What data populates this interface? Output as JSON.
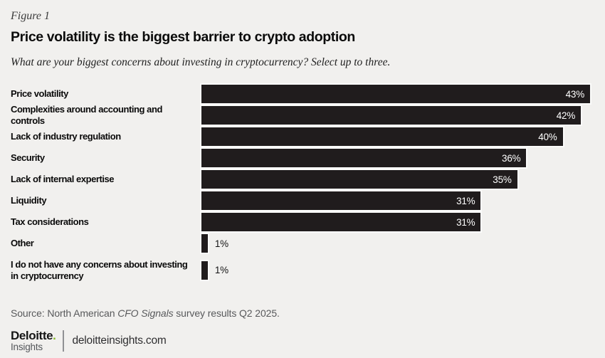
{
  "figure_label": "Figure 1",
  "title": "Price volatility is the biggest barrier to crypto adoption",
  "subtitle": "What are your biggest concerns about investing in cryptocurrency? Select up to three.",
  "chart_data": {
    "type": "bar",
    "orientation": "horizontal",
    "categories": [
      "Price volatility",
      "Complexities around accounting and controls",
      "Lack of industry regulation",
      "Security",
      "Lack of internal expertise",
      "Liquidity",
      "Tax considerations",
      "Other",
      "I do not have any concerns about investing in cryptocurrency"
    ],
    "values": [
      43,
      42,
      40,
      36,
      35,
      31,
      31,
      1,
      1
    ],
    "value_labels": [
      "43%",
      "42%",
      "40%",
      "36%",
      "35%",
      "31%",
      "31%",
      "1%",
      "1%"
    ],
    "value_suffix": "%",
    "xlim": [
      0,
      43
    ],
    "grid": false,
    "legend": false,
    "bar_color": "#201c1d",
    "value_label_inside_color": "#ffffff",
    "value_label_outside_color": "#141414",
    "inside_label_min_value": 5
  },
  "source": {
    "prefix": "Source: North American ",
    "italic": "CFO Signals",
    "suffix": " survey results Q2 2025."
  },
  "footer": {
    "logo_line1": "Deloitte",
    "logo_dot": ".",
    "logo_line2": "Insights",
    "site": "deloitteinsights.com",
    "dot_color": "#86bc25"
  },
  "colors": {
    "background": "#f1f0ee",
    "bar": "#201c1d",
    "muted_text": "#58595b"
  }
}
